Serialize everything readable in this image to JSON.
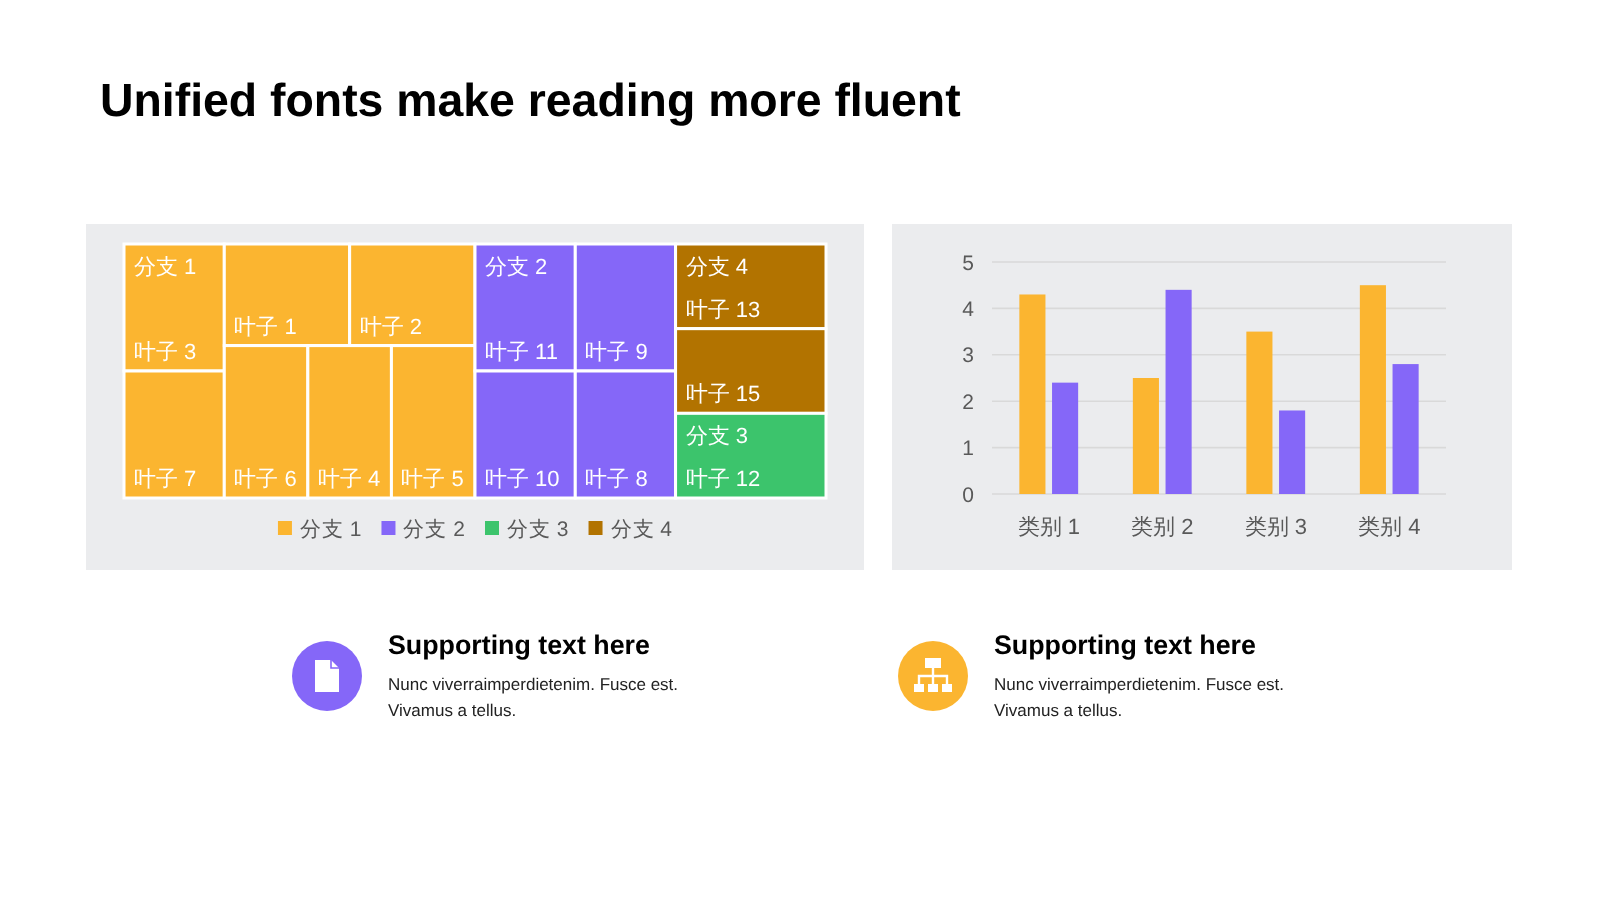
{
  "chart_data": [
    {
      "type": "other",
      "title": "Unified fonts make reading more fluent"
    },
    {
      "type": "other",
      "legend": "bottom",
      "categories": [
        "叶子 3",
        "叶子 7",
        "叶子 1",
        "叶子 2",
        "叶子 6",
        "叶子 4",
        "叶子 5",
        "叶子 11",
        "叶子 9",
        "叶子 10",
        "叶子 8",
        "叶子 13",
        "叶子 15",
        "叶子 12"
      ],
      "colors": [
        "#fbb530",
        "#fbb530",
        "#fbb530",
        "#fbb530",
        "#fbb530",
        "#fbb530",
        "#fbb530",
        "#8567f8",
        "#8567f8",
        "#8567f8",
        "#8567f8",
        "#b27300",
        "#b27300",
        "#3cc46c"
      ],
      "series": [
        {
          "name": "分支 1",
          "color": "#fbb530",
          "values": [
            null,
            null,
            null,
            null,
            null,
            null,
            null,
            null,
            null,
            null,
            null,
            null,
            null,
            null
          ]
        },
        {
          "name": "分支 2",
          "color": "#8567f8",
          "values": [
            null,
            null,
            null,
            null,
            null,
            null,
            null,
            null,
            null,
            null,
            null,
            null,
            null,
            null
          ]
        },
        {
          "name": "分支 3",
          "color": "#3cc46c",
          "values": [
            null,
            null,
            null,
            null,
            null,
            null,
            null,
            null,
            null,
            null,
            null,
            null,
            null,
            null
          ]
        },
        {
          "name": "分支 4",
          "color": "#b27300",
          "values": [
            null,
            null,
            null,
            null,
            null,
            null,
            null,
            null,
            null,
            null,
            null,
            null,
            null,
            null
          ]
        }
      ]
    },
    {
      "type": "bar",
      "categories": [
        "类别 1",
        "类别 2",
        "类别 3",
        "类别 4"
      ],
      "series": [
        {
          "color": "#fbb530",
          "values": [
            4.3,
            2.5,
            3.5,
            4.5
          ]
        },
        {
          "color": "#8567f8",
          "values": [
            2.4,
            4.4,
            1.8,
            2.8
          ]
        }
      ],
      "ylim": [
        0,
        5
      ],
      "yticks": [
        0,
        1,
        2,
        3,
        4,
        5
      ],
      "grid": "y"
    },
    {
      "type": "other",
      "title": "Supporting text here",
      "annotations": [
        "Nunc viverraimperdietenim. Fusce est. Vivamus a tellus."
      ]
    },
    {
      "type": "other",
      "title": "Supporting text here",
      "annotations": [
        "Nunc viverraimperdietenim. Fusce est. Vivamus a tellus."
      ]
    }
  ]
}
